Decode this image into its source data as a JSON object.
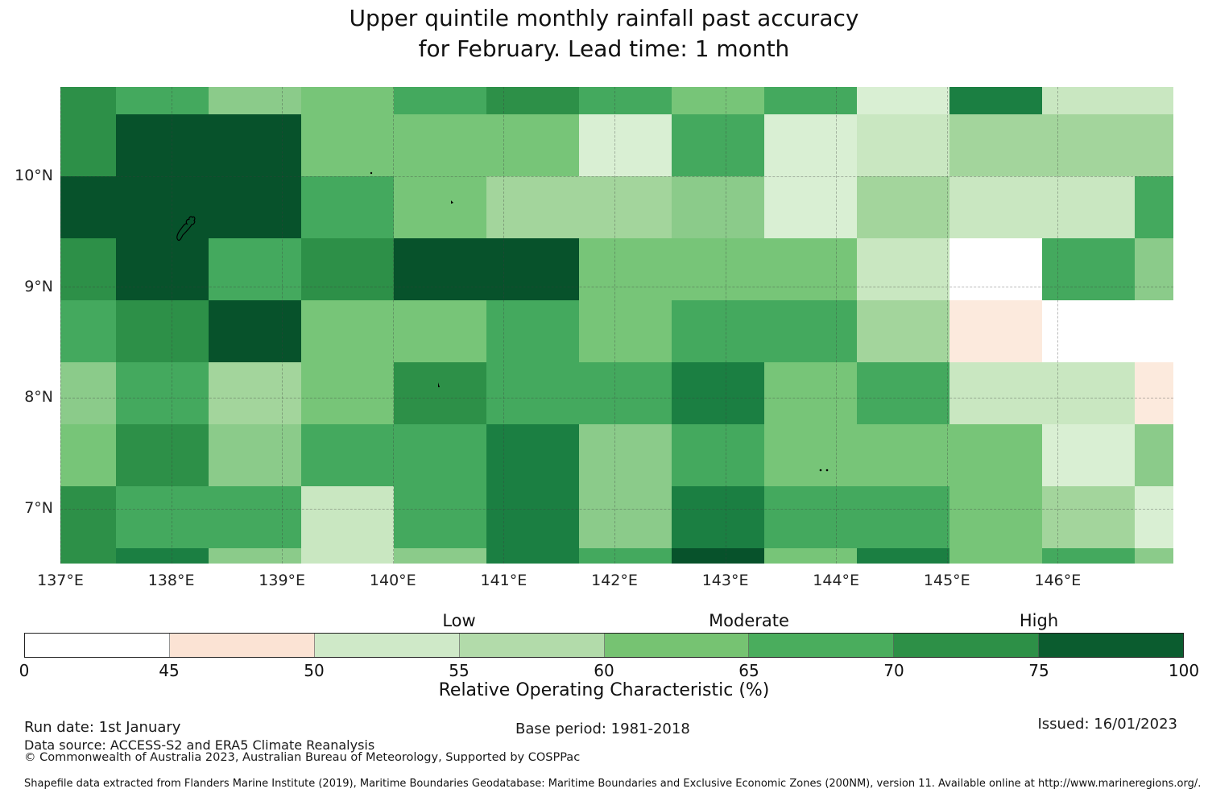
{
  "title": {
    "line1": "Upper quintile monthly rainfall past accuracy",
    "line2": "for February. Lead time: 1 month"
  },
  "chart_data": {
    "type": "heatmap",
    "title": "Upper quintile monthly rainfall past accuracy for February. Lead time: 1 month",
    "x_axis": {
      "ticks": [
        "137°E",
        "138°E",
        "139°E",
        "140°E",
        "141°E",
        "142°E",
        "143°E",
        "144°E",
        "145°E",
        "146°E"
      ],
      "range_lon": [
        137.0,
        147.05
      ],
      "grid": true
    },
    "y_axis": {
      "ticks": [
        "10°N",
        "9°N",
        "8°N",
        "7°N"
      ],
      "range_lat": [
        6.5,
        10.8
      ],
      "grid": true
    },
    "palette": {
      "w": "#ffffff",
      "p": "#fceadd",
      "g1": "#d9efd3",
      "g2": "#c9e7c1",
      "g3": "#a3d59c",
      "g4": "#8bcb8a",
      "g5": "#77c578",
      "g6": "#44a95e",
      "g7": "#2d9048",
      "g8": "#1b7f42",
      "g9": "#07522b"
    },
    "col_edges_lon": [
      137.0,
      137.5,
      138.33,
      139.17,
      140.0,
      140.83,
      141.67,
      142.5,
      143.33,
      144.17,
      145.0,
      145.83,
      146.67,
      147.05
    ],
    "row_edges_lat": [
      10.8,
      10.56,
      10.0,
      9.44,
      8.88,
      8.32,
      7.76,
      7.2,
      6.64,
      6.5
    ],
    "cells": [
      [
        "g7",
        "g6",
        "g4",
        "g5",
        "g6",
        "g7",
        "g6",
        "g5",
        "g6",
        "g1",
        "g8",
        "g2",
        "g2"
      ],
      [
        "g7",
        "g9",
        "g9",
        "g5",
        "g5",
        "g5",
        "g1",
        "g6",
        "g1",
        "g2",
        "g3",
        "g3",
        "g3"
      ],
      [
        "g9",
        "g9",
        "g9",
        "g6",
        "g5",
        "g3",
        "g3",
        "g4",
        "g1",
        "g3",
        "g2",
        "g2",
        "g6"
      ],
      [
        "g7",
        "g9",
        "g6",
        "g7",
        "g9",
        "g9",
        "g5",
        "g5",
        "g5",
        "g2",
        "w",
        "g6",
        "g4"
      ],
      [
        "g6",
        "g7",
        "g9",
        "g5",
        "g5",
        "g6",
        "g5",
        "g6",
        "g6",
        "g3",
        "p",
        "w",
        "w"
      ],
      [
        "g4",
        "g6",
        "g3",
        "g5",
        "g7",
        "g6",
        "g6",
        "g8",
        "g5",
        "g6",
        "g2",
        "g2",
        "p"
      ],
      [
        "g5",
        "g7",
        "g4",
        "g6",
        "g6",
        "g8",
        "g4",
        "g6",
        "g5",
        "g5",
        "g5",
        "g1",
        "g4"
      ],
      [
        "g7",
        "g6",
        "g6",
        "g2",
        "g6",
        "g8",
        "g4",
        "g8",
        "g6",
        "g6",
        "g5",
        "g3",
        "g1"
      ],
      [
        "g7",
        "g8",
        "g4",
        "g2",
        "g4",
        "g8",
        "g6",
        "g9",
        "g5",
        "g8",
        "g5",
        "g6",
        "g4"
      ]
    ],
    "colorbar": {
      "bin_tick_labels": [
        "0",
        "45",
        "50",
        "55",
        "60",
        "65",
        "70",
        "75",
        "100"
      ],
      "bin_colors": [
        "#ffffff",
        "#fbe3d4",
        "#cfe9c8",
        "#b2dbaa",
        "#76c372",
        "#4aad5d",
        "#2d9047",
        "#0b5c2f"
      ],
      "category_labels": [
        {
          "label": "Low",
          "boundary_value": "55"
        },
        {
          "label": "Moderate",
          "boundary_value": "65"
        },
        {
          "label": "High",
          "boundary_value": "75"
        }
      ],
      "axis_label": "Relative Operating Characteristic (%)"
    }
  },
  "footer": {
    "run_date": "Run date: 1st January",
    "base_period": "Base period: 1981-2018",
    "issued": "Issued: 16/01/2023",
    "data_source": "Data source: ACCESS-S2 and ERA5 Climate Reanalysis",
    "copyright": "© Commonwealth of Australia 2023, Australian Bureau of Meteorology, Supported by COSPPac",
    "shapefile_note": "Shapefile data extracted from Flanders Marine Institute (2019), Maritime Boundaries Geodatabase: Maritime Boundaries and Exclusive Economic Zones (200NM), version 11. Available online at http://www.marineregions.org/."
  }
}
